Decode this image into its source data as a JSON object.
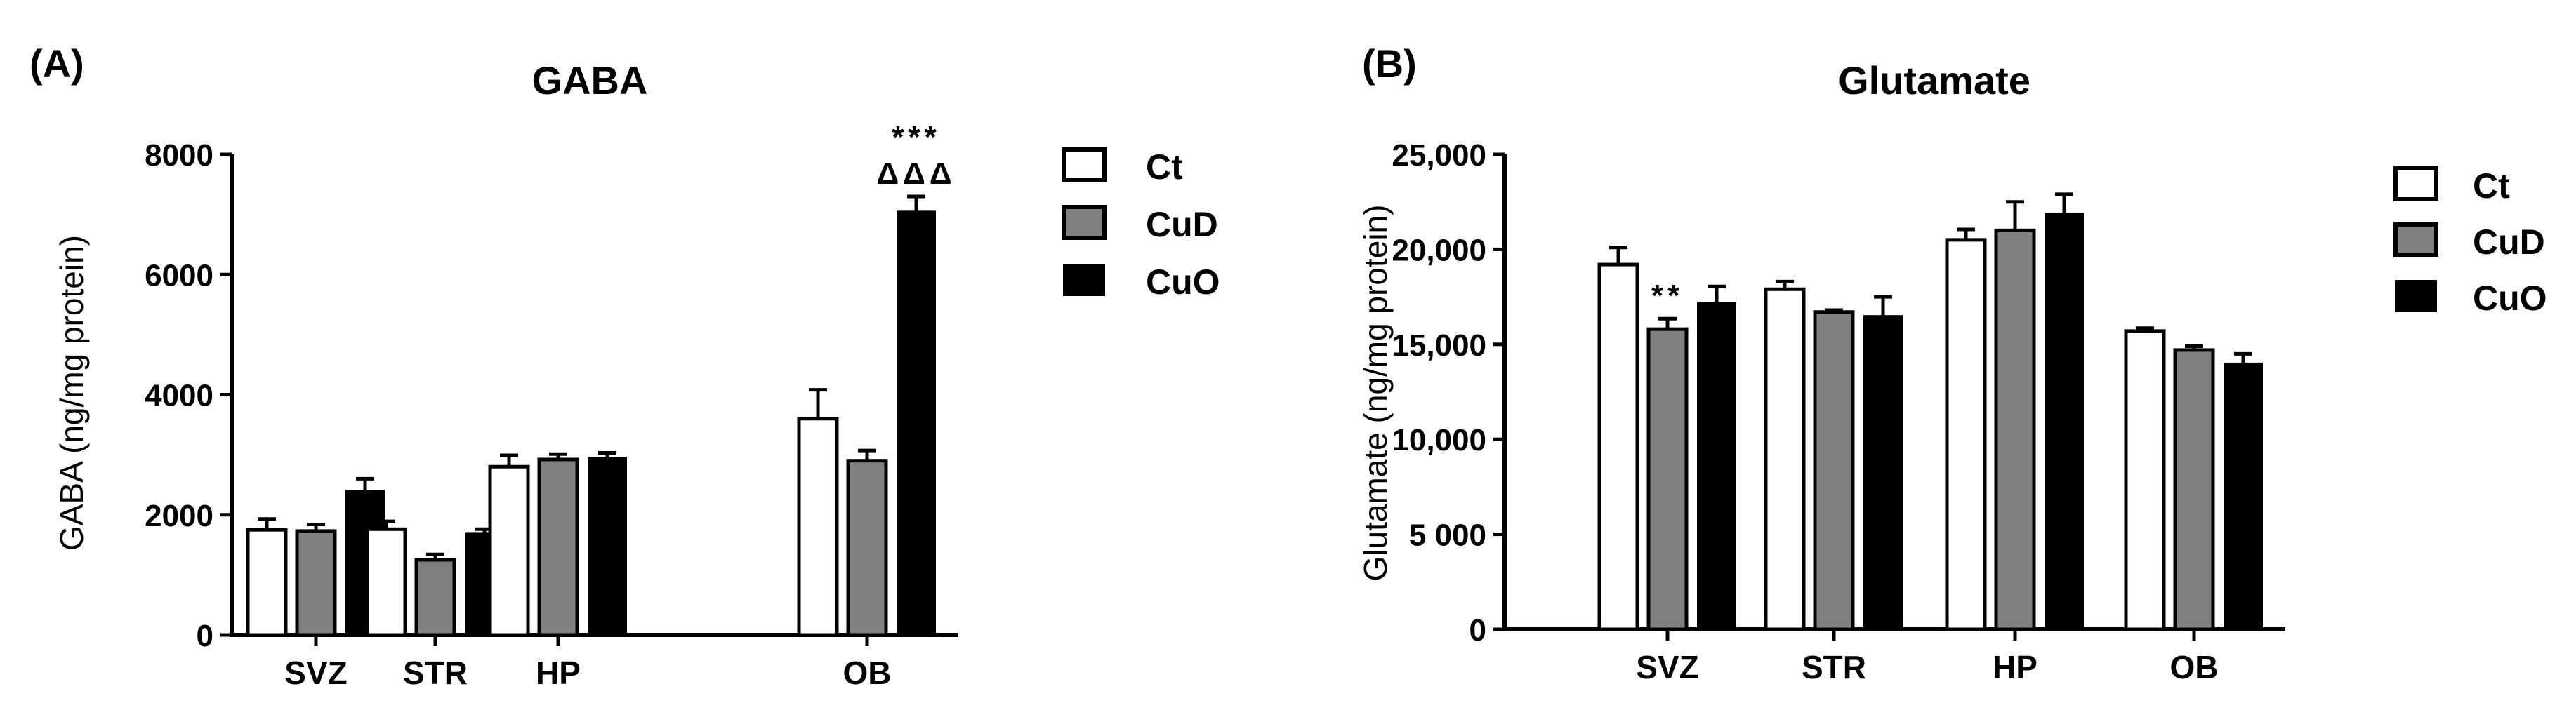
{
  "chart_data": [
    {
      "type": "bar",
      "panel_label": "(A)",
      "title": "GABA",
      "xlabel": "",
      "ylabel": "GABA (ng/mg protein)",
      "ylim": [
        0,
        8000
      ],
      "yticks": [
        0,
        2000,
        4000,
        6000,
        8000
      ],
      "ytick_labels": [
        "0",
        "2000",
        "4000",
        "6000",
        "8000"
      ],
      "categories": [
        "SVZ",
        "STR",
        "HP",
        "OB"
      ],
      "legend_position": "right",
      "series": [
        {
          "name": "Ct",
          "color": "#ffffff",
          "values": [
            1750,
            1760,
            2800,
            3600
          ],
          "errors": [
            180,
            130,
            190,
            480
          ]
        },
        {
          "name": "CuD",
          "color": "#808080",
          "values": [
            1730,
            1250,
            2920,
            2900
          ],
          "errors": [
            110,
            90,
            90,
            170
          ]
        },
        {
          "name": "CuO",
          "color": "#000000",
          "values": [
            2400,
            1700,
            2950,
            7050
          ],
          "errors": [
            200,
            60,
            80,
            250
          ]
        }
      ],
      "annotations": [
        {
          "category": "OB",
          "series": "CuO",
          "lines": [
            "***",
            "ΔΔΔ"
          ]
        }
      ]
    },
    {
      "type": "bar",
      "panel_label": "(B)",
      "title": "Glutamate",
      "xlabel": "",
      "ylabel": "Glutamate (ng/mg protein)",
      "ylim": [
        0,
        25000
      ],
      "yticks": [
        0,
        5000,
        10000,
        15000,
        20000,
        25000
      ],
      "ytick_labels": [
        "0",
        "5 000",
        "10,000",
        "15,000",
        "20,000",
        "25,000"
      ],
      "categories": [
        "SVZ",
        "STR",
        "HP",
        "OB"
      ],
      "legend_position": "right",
      "series": [
        {
          "name": "Ct",
          "color": "#ffffff",
          "values": [
            19200,
            17900,
            20500,
            15700
          ],
          "errors": [
            900,
            400,
            550,
            150
          ]
        },
        {
          "name": "CuD",
          "color": "#808080",
          "values": [
            15800,
            16700,
            21000,
            14700
          ],
          "errors": [
            550,
            100,
            1500,
            200
          ]
        },
        {
          "name": "CuO",
          "color": "#000000",
          "values": [
            17200,
            16500,
            21900,
            14000
          ],
          "errors": [
            850,
            1000,
            1000,
            500
          ]
        }
      ],
      "annotations": [
        {
          "category": "SVZ",
          "series": "CuD",
          "lines": [
            "**"
          ]
        }
      ]
    }
  ]
}
